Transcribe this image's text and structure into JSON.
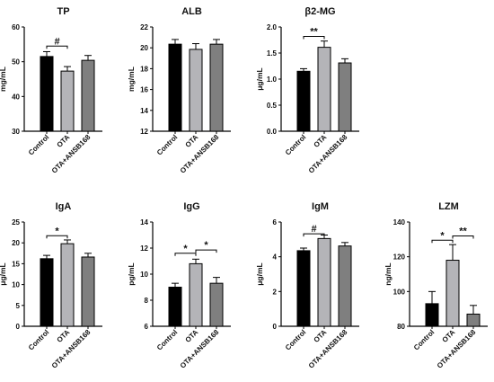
{
  "colors": {
    "control": "#000000",
    "ota": "#b4b4b8",
    "ota_ansb168": "#7f7f7f",
    "axis": "#000000"
  },
  "chart_data": [
    {
      "type": "bar",
      "title": "TP",
      "ylabel": "mg/mL",
      "categories": [
        "Control",
        "OTA",
        "OTA+ANSB168"
      ],
      "values": [
        51.5,
        47.3,
        50.4
      ],
      "errors": [
        1.4,
        1.3,
        1.4
      ],
      "ylim": [
        30,
        60
      ],
      "yticks": [
        30,
        40,
        50,
        60
      ],
      "annotations": [
        {
          "from": 0,
          "to": 1,
          "label": "#",
          "y": 54.5
        }
      ]
    },
    {
      "type": "bar",
      "title": "ALB",
      "ylabel": "mg/mL",
      "categories": [
        "Control",
        "OTA",
        "OTA+ANSB168"
      ],
      "values": [
        20.35,
        19.85,
        20.35
      ],
      "errors": [
        0.45,
        0.55,
        0.45
      ],
      "ylim": [
        12,
        22
      ],
      "yticks": [
        12,
        14,
        16,
        18,
        20,
        22
      ],
      "annotations": []
    },
    {
      "type": "bar",
      "title": "β2-MG",
      "ylabel": "μg/mL",
      "categories": [
        "Control",
        "OTA",
        "OTA+ANSB168"
      ],
      "values": [
        1.15,
        1.61,
        1.31
      ],
      "errors": [
        0.05,
        0.12,
        0.08
      ],
      "ylim": [
        0.0,
        2.0
      ],
      "yticks": [
        "0.0",
        "0.5",
        "1.0",
        "1.5",
        "2.0"
      ],
      "annotations": [
        {
          "from": 0,
          "to": 1,
          "label": "**",
          "y": 1.82
        }
      ]
    },
    {
      "type": "bar",
      "title": "IgA",
      "ylabel": "μg/mL",
      "categories": [
        "Control",
        "OTA",
        "OTA+ANSB168"
      ],
      "values": [
        16.2,
        19.8,
        16.6
      ],
      "errors": [
        0.8,
        0.9,
        0.9
      ],
      "ylim": [
        0,
        25
      ],
      "yticks": [
        0,
        5,
        10,
        15,
        20,
        25
      ],
      "annotations": [
        {
          "from": 0,
          "to": 1,
          "label": "*",
          "y": 21.7
        }
      ]
    },
    {
      "type": "bar",
      "title": "IgG",
      "ylabel": "pg/mL",
      "categories": [
        "Control",
        "OTA",
        "OTA+ANSB168"
      ],
      "values": [
        9.0,
        10.8,
        9.3
      ],
      "errors": [
        0.3,
        0.35,
        0.45
      ],
      "ylim": [
        6,
        14
      ],
      "yticks": [
        6,
        8,
        10,
        12,
        14
      ],
      "annotations": [
        {
          "from": 0,
          "to": 1,
          "label": "*",
          "y": 11.6
        },
        {
          "from": 1,
          "to": 2,
          "label": "*",
          "y": 11.85
        }
      ]
    },
    {
      "type": "bar",
      "title": "IgM",
      "ylabel": "μg/mL",
      "categories": [
        "Control",
        "OTA",
        "OTA+ANSB168"
      ],
      "values": [
        4.35,
        5.05,
        4.62
      ],
      "errors": [
        0.15,
        0.2,
        0.2
      ],
      "ylim": [
        0,
        6
      ],
      "yticks": [
        0,
        2,
        4,
        6
      ],
      "annotations": [
        {
          "from": 0,
          "to": 1,
          "label": "#",
          "y": 5.32
        }
      ]
    },
    {
      "type": "bar",
      "title": "LZM",
      "ylabel": "ng/mL",
      "categories": [
        "Control",
        "OTA",
        "OTA+ANSB168"
      ],
      "values": [
        93,
        118,
        87
      ],
      "errors": [
        7,
        9,
        5
      ],
      "ylim": [
        80,
        140
      ],
      "yticks": [
        80,
        100,
        120,
        140
      ],
      "annotations": [
        {
          "from": 0,
          "to": 1,
          "label": "*",
          "y": 129.5
        },
        {
          "from": 1,
          "to": 2,
          "label": "**",
          "y": 132
        }
      ]
    }
  ]
}
